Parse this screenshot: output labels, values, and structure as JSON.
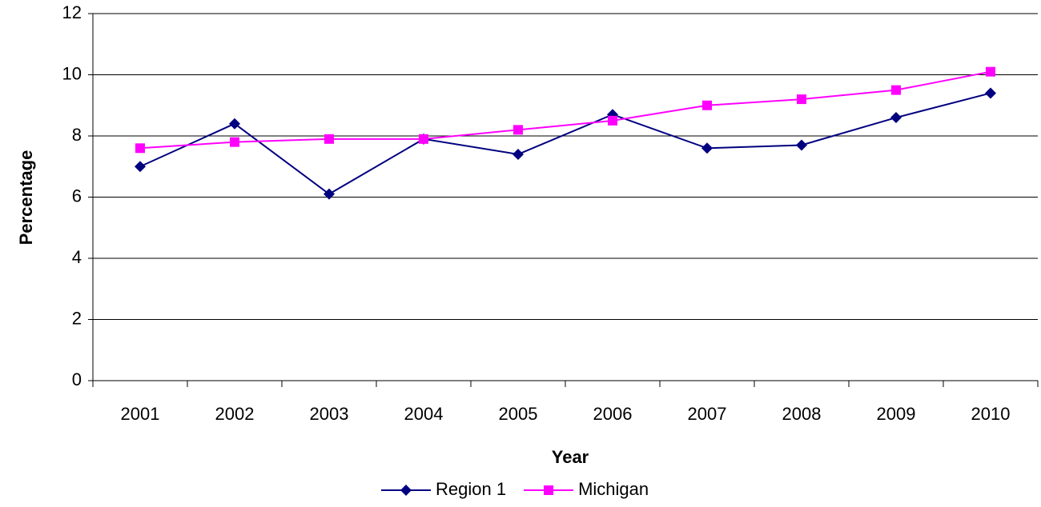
{
  "chart_data": {
    "type": "line",
    "x_label": "Year",
    "y_label": "Percentage",
    "categories": [
      "2001",
      "2002",
      "2003",
      "2004",
      "2005",
      "2006",
      "2007",
      "2008",
      "2009",
      "2010"
    ],
    "series": [
      {
        "name": "Region 1",
        "color": "#000080",
        "marker": "diamond",
        "values": [
          7.0,
          8.4,
          6.1,
          7.9,
          7.4,
          8.7,
          7.6,
          7.7,
          8.6,
          9.4
        ]
      },
      {
        "name": "Michigan",
        "color": "#ff00ff",
        "marker": "square",
        "values": [
          7.6,
          7.8,
          7.9,
          7.9,
          8.2,
          8.5,
          9.0,
          9.2,
          9.5,
          10.1
        ]
      }
    ],
    "ylim": [
      0,
      12
    ],
    "yticks": [
      0,
      2,
      4,
      6,
      8,
      10,
      12
    ],
    "grid": true,
    "legend": "bottom"
  }
}
